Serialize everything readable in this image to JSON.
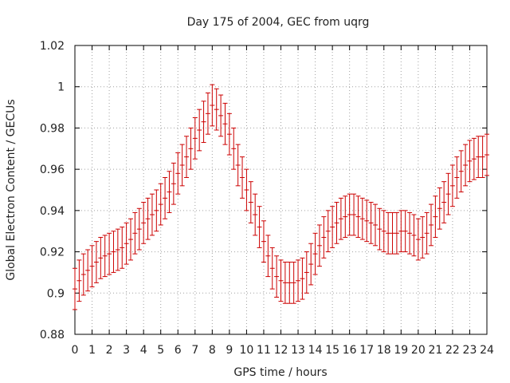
{
  "chart_data": {
    "type": "scatter",
    "title": "Day 175 of 2004, GEC from uqrg",
    "xlabel": "GPS time / hours",
    "ylabel": "Global Electron Content / GECUs",
    "xlim": [
      0,
      24
    ],
    "ylim": [
      0.88,
      1.02
    ],
    "grid": true,
    "x_ticks": [
      0,
      1,
      2,
      3,
      4,
      5,
      6,
      7,
      8,
      9,
      10,
      11,
      12,
      13,
      14,
      15,
      16,
      17,
      18,
      19,
      20,
      21,
      22,
      23,
      24
    ],
    "x_tick_labels": [
      "0",
      "1",
      "2",
      "3",
      "4",
      "5",
      "6",
      "7",
      "8",
      "9",
      "10",
      "11",
      "12",
      "13",
      "14",
      "15",
      "16",
      "17",
      "18",
      "19",
      "20",
      "21",
      "22",
      "23",
      "24"
    ],
    "y_ticks": [
      0.88,
      0.9,
      0.92,
      0.94,
      0.96,
      0.98,
      1.0,
      1.02
    ],
    "y_tick_labels": [
      "0.88",
      "0.9",
      "0.92",
      "0.94",
      "0.96",
      "0.98",
      "1",
      "1.02"
    ],
    "error": 0.01,
    "series": [
      {
        "color": "#cc0000",
        "x": [
          0.0,
          0.25,
          0.5,
          0.75,
          1.0,
          1.25,
          1.5,
          1.75,
          2.0,
          2.25,
          2.5,
          2.75,
          3.0,
          3.25,
          3.5,
          3.75,
          4.0,
          4.25,
          4.5,
          4.75,
          5.0,
          5.25,
          5.5,
          5.75,
          6.0,
          6.25,
          6.5,
          6.75,
          7.0,
          7.25,
          7.5,
          7.75,
          8.0,
          8.25,
          8.5,
          8.75,
          9.0,
          9.25,
          9.5,
          9.75,
          10.0,
          10.25,
          10.5,
          10.75,
          11.0,
          11.25,
          11.5,
          11.75,
          12.0,
          12.25,
          12.5,
          12.75,
          13.0,
          13.25,
          13.5,
          13.75,
          14.0,
          14.25,
          14.5,
          14.75,
          15.0,
          15.25,
          15.5,
          15.75,
          16.0,
          16.25,
          16.5,
          16.75,
          17.0,
          17.25,
          17.5,
          17.75,
          18.0,
          18.25,
          18.5,
          18.75,
          19.0,
          19.25,
          19.5,
          19.75,
          20.0,
          20.25,
          20.5,
          20.75,
          21.0,
          21.25,
          21.5,
          21.75,
          22.0,
          22.25,
          22.5,
          22.75,
          23.0,
          23.25,
          23.5,
          23.75,
          24.0
        ],
        "y": [
          0.902,
          0.906,
          0.909,
          0.911,
          0.913,
          0.915,
          0.917,
          0.918,
          0.919,
          0.92,
          0.921,
          0.922,
          0.924,
          0.926,
          0.929,
          0.931,
          0.934,
          0.936,
          0.938,
          0.94,
          0.943,
          0.946,
          0.949,
          0.953,
          0.958,
          0.962,
          0.966,
          0.97,
          0.975,
          0.979,
          0.983,
          0.987,
          0.991,
          0.989,
          0.986,
          0.982,
          0.977,
          0.97,
          0.962,
          0.956,
          0.95,
          0.944,
          0.938,
          0.932,
          0.925,
          0.918,
          0.912,
          0.908,
          0.906,
          0.905,
          0.905,
          0.905,
          0.906,
          0.907,
          0.91,
          0.914,
          0.919,
          0.923,
          0.927,
          0.93,
          0.932,
          0.934,
          0.936,
          0.937,
          0.938,
          0.938,
          0.937,
          0.936,
          0.935,
          0.934,
          0.933,
          0.931,
          0.93,
          0.929,
          0.929,
          0.929,
          0.93,
          0.93,
          0.929,
          0.928,
          0.926,
          0.927,
          0.929,
          0.933,
          0.937,
          0.941,
          0.944,
          0.948,
          0.952,
          0.956,
          0.959,
          0.962,
          0.964,
          0.965,
          0.966,
          0.966,
          0.967
        ]
      }
    ]
  }
}
